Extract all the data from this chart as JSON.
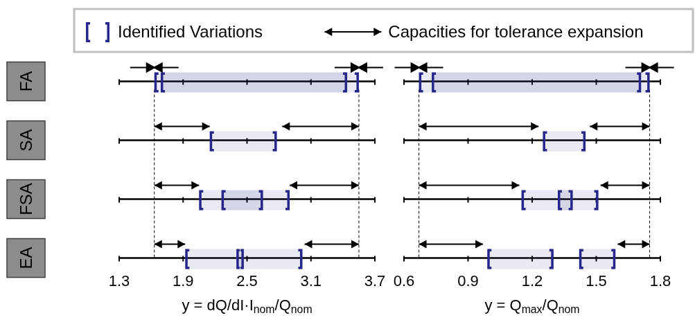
{
  "chart_data": [
    {
      "type": "bar",
      "orientation": "horizontal",
      "legend": "top",
      "grid": "y",
      "categories": [
        "FA",
        "SA",
        "FSA",
        "EA"
      ],
      "xlim": [
        1.3,
        3.7
      ],
      "xticks": [
        1.3,
        1.9,
        2.5,
        3.1,
        3.7
      ],
      "xlabel": "y = dQ/dI·I$_{nom}$/Q$_{nom}$",
      "series": [
        {
          "name": "Identified Variations",
          "marker": "square",
          "color": "#28288c",
          "base": [
            1.63,
            2.15,
            2.05,
            1.92
          ],
          "values": [
            1.92,
            0.63,
            0.85,
            1.1
          ]
        },
        {
          "marker": "square",
          "color": "#28288c",
          "base": [
            1.69,
            null,
            2.26,
            2.4
          ],
          "values": [
            1.75,
            null,
            0.39,
            0.07
          ]
        },
        {
          "name": "Capacities for tolerance expansion",
          "marker": "triangle",
          "color": "#000000",
          "base": [
            null,
            1.63,
            1.63,
            1.63
          ],
          "values": [
            null,
            0.52,
            0.42,
            0.29
          ]
        },
        {
          "marker": "triangle",
          "color": "#000000",
          "base": [
            null,
            2.83,
            2.9,
            3.04
          ],
          "values": [
            null,
            0.72,
            0.65,
            0.51
          ]
        }
      ],
      "ref_lines": [
        {
          "axis": "x",
          "value": 1.63,
          "line_style": "dashed",
          "color": "#000000"
        },
        {
          "axis": "x",
          "value": 3.55,
          "line_style": "dashed",
          "color": "#000000"
        }
      ]
    },
    {
      "type": "bar",
      "orientation": "horizontal",
      "tick_labels": "x",
      "grid": "y",
      "categories": [
        null,
        null,
        null,
        null
      ],
      "xlim": [
        0.6,
        1.8
      ],
      "xticks": [
        0.6,
        0.9,
        1.2,
        1.5,
        1.8
      ],
      "xlabel": "y = Q$_{max}$/Q$_{nom}$",
      "series": [
        {
          "marker": "square",
          "color": "#28288c",
          "base": [
            0.67,
            1.25,
            1.15,
            0.99
          ],
          "values": [
            1.08,
            0.2,
            0.36,
            0.31
          ]
        },
        {
          "marker": "square",
          "color": "#28288c",
          "base": [
            0.73,
            null,
            1.32,
            1.42
          ],
          "values": [
            0.98,
            null,
            0.07,
            0.17
          ]
        },
        {
          "marker": "triangle",
          "color": "#000000",
          "base": [
            null,
            0.67,
            0.67,
            0.67
          ],
          "values": [
            null,
            0.56,
            0.47,
            0.3
          ]
        },
        {
          "marker": "triangle",
          "color": "#000000",
          "base": [
            null,
            1.47,
            1.52,
            1.6
          ],
          "values": [
            null,
            0.28,
            0.23,
            0.15
          ]
        }
      ],
      "ref_lines": [
        {
          "axis": "x",
          "value": 0.67,
          "line_style": "dashed",
          "color": "#000000"
        },
        {
          "axis": "x",
          "value": 1.75,
          "line_style": "dashed",
          "color": "#000000"
        }
      ]
    }
  ]
}
